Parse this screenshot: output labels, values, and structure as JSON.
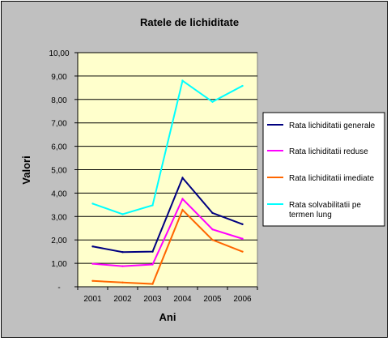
{
  "chart_data": {
    "type": "line",
    "title": "Ratele de  lichiditate",
    "xlabel": "Ani",
    "ylabel": "Valori",
    "categories": [
      "2001",
      "2002",
      "2003",
      "2004",
      "2005",
      "2006"
    ],
    "ylim": [
      0,
      10
    ],
    "yticks": [
      "-",
      "1,00",
      "2,00",
      "3,00",
      "4,00",
      "5,00",
      "6,00",
      "7,00",
      "8,00",
      "9,00",
      "10,00"
    ],
    "grid": "horizontal",
    "legend_position": "right",
    "plot_background": "#ffffcc",
    "series": [
      {
        "name": "Rata lichiditatii generale",
        "color": "#000080",
        "values": [
          1.72,
          1.48,
          1.5,
          4.65,
          3.15,
          2.67
        ]
      },
      {
        "name": "Rata lichiditatii reduse",
        "color": "#ff00ff",
        "values": [
          0.98,
          0.88,
          0.95,
          3.75,
          2.45,
          2.05
        ]
      },
      {
        "name": "Rata lichiditatii imediate",
        "color": "#ff6600",
        "values": [
          0.25,
          0.18,
          0.12,
          3.28,
          2.0,
          1.5
        ]
      },
      {
        "name": "Rata solvabilitatii pe termen lung",
        "name_lines": [
          "Rata solvabilitatii pe",
          "termen lung"
        ],
        "color": "#00ffff",
        "values": [
          3.55,
          3.1,
          3.48,
          8.8,
          7.9,
          8.58
        ]
      }
    ]
  }
}
